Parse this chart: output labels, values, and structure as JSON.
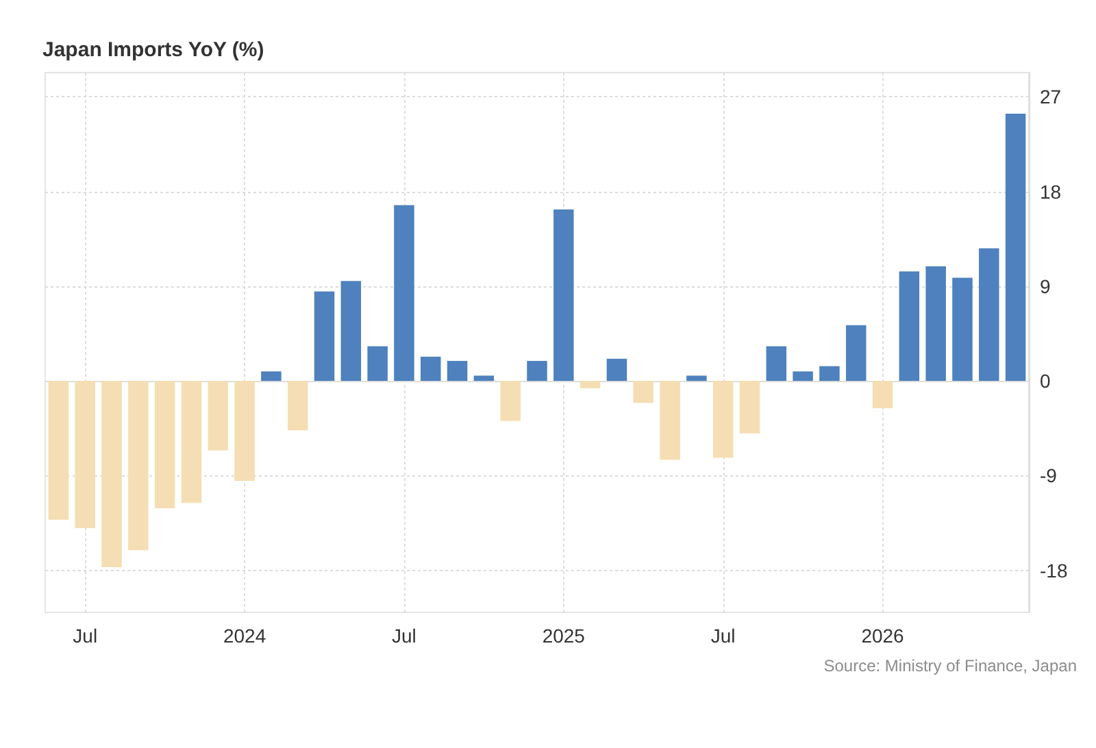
{
  "chart_data": {
    "type": "bar",
    "title": "Japan Imports YoY (%)",
    "annotations": [
      "Source: Ministry of Finance, Japan"
    ],
    "categories": [
      null,
      "Jul",
      null,
      null,
      null,
      null,
      null,
      "2024",
      null,
      null,
      null,
      null,
      null,
      "Jul",
      null,
      null,
      null,
      null,
      null,
      "2025",
      null,
      null,
      null,
      null,
      null,
      "Jul",
      null,
      null,
      null,
      null,
      null,
      "2026",
      null,
      null,
      null,
      null,
      null
    ],
    "values": [
      -13.2,
      -14.0,
      -17.7,
      -16.1,
      -12.1,
      -11.6,
      -6.6,
      -9.5,
      0.9,
      -4.7,
      8.5,
      9.5,
      3.3,
      16.7,
      2.3,
      1.9,
      0.5,
      -3.8,
      1.9,
      16.3,
      -0.7,
      2.1,
      -2.1,
      -7.5,
      0.5,
      -7.3,
      -5.0,
      3.3,
      0.9,
      1.4,
      5.3,
      -2.6,
      10.4,
      10.9,
      9.8,
      12.6,
      25.4
    ],
    "colors": [
      "#f5deb3",
      "#f5deb3",
      "#f5deb3",
      "#f5deb3",
      "#f5deb3",
      "#f5deb3",
      "#f5deb3",
      "#f5deb3",
      "#4e81bd",
      "#f5deb3",
      "#4e81bd",
      "#4e81bd",
      "#4e81bd",
      "#4e81bd",
      "#4e81bd",
      "#4e81bd",
      "#4e81bd",
      "#f5deb3",
      "#4e81bd",
      "#4e81bd",
      "#f5deb3",
      "#4e81bd",
      "#f5deb3",
      "#f5deb3",
      "#4e81bd",
      "#f5deb3",
      "#f5deb3",
      "#4e81bd",
      "#4e81bd",
      "#4e81bd",
      "#4e81bd",
      "#f5deb3",
      "#4e81bd",
      "#4e81bd",
      "#4e81bd",
      "#4e81bd",
      "#4e81bd"
    ],
    "ylim": [
      -22,
      29.3
    ],
    "yticks": [
      -18,
      -9,
      0,
      9,
      18,
      27
    ],
    "grid": true
  }
}
